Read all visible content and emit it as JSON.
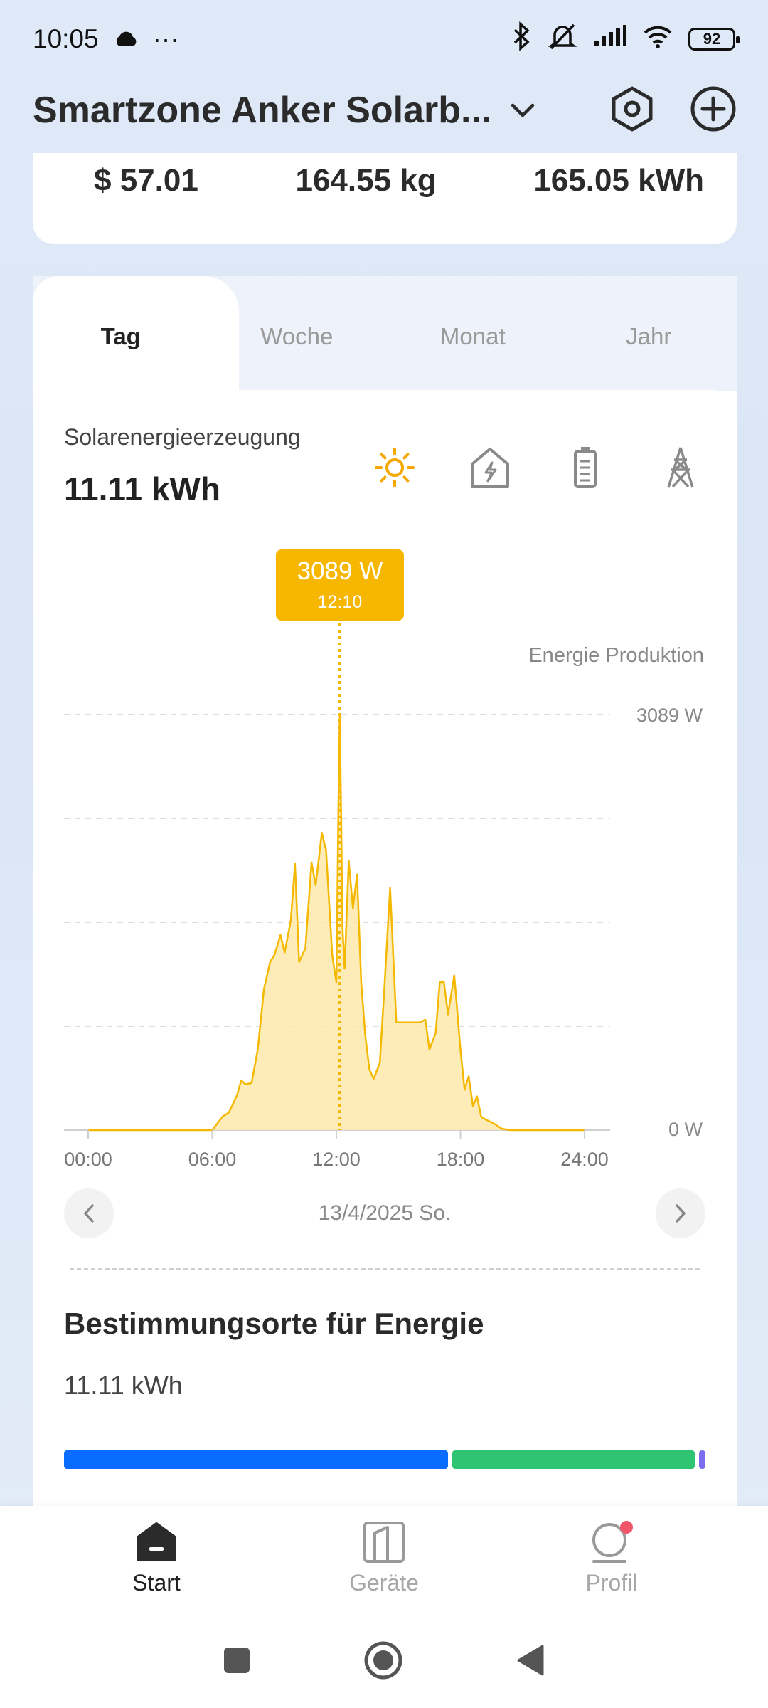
{
  "status_bar": {
    "time": "10:05",
    "more": "···",
    "battery": "92"
  },
  "header": {
    "title": "Smartzone Anker Solarb..."
  },
  "summary": {
    "savings": "$ 57.01",
    "co2": "164.55 kg",
    "energy": "165.05 kWh"
  },
  "tabs": [
    {
      "label": "Tag",
      "active": true
    },
    {
      "label": "Woche",
      "active": false
    },
    {
      "label": "Monat",
      "active": false
    },
    {
      "label": "Jahr",
      "active": false
    }
  ],
  "metric": {
    "label": "Solarenergieerzeugung",
    "value": "11.11 kWh"
  },
  "type_icons": [
    "sun-icon",
    "house-bolt-icon",
    "battery-icon",
    "pylon-icon"
  ],
  "colors": {
    "accent": "#f5b800",
    "blue": "#0a6cff",
    "green": "#2ec472",
    "purple": "#7b6cf0"
  },
  "chart_data": {
    "type": "area",
    "legend": "Energie Produktion",
    "tooltip": {
      "value": "3089 W",
      "time": "12:10"
    },
    "y_tick_labels": [
      "3089 W",
      "0 W"
    ],
    "x_tick_labels": [
      "00:00",
      "06:00",
      "12:00",
      "18:00",
      "24:00"
    ],
    "xlim": [
      0,
      24
    ],
    "ylim": [
      0,
      3089
    ],
    "unit": "W",
    "grid": true,
    "points": [
      [
        0,
        0
      ],
      [
        6.0,
        0
      ],
      [
        6.2,
        40
      ],
      [
        6.5,
        100
      ],
      [
        6.8,
        130
      ],
      [
        7.2,
        260
      ],
      [
        7.4,
        370
      ],
      [
        7.6,
        340
      ],
      [
        7.9,
        350
      ],
      [
        8.2,
        600
      ],
      [
        8.5,
        1050
      ],
      [
        8.8,
        1250
      ],
      [
        9.0,
        1300
      ],
      [
        9.3,
        1450
      ],
      [
        9.5,
        1320
      ],
      [
        9.8,
        1560
      ],
      [
        10.0,
        1980
      ],
      [
        10.2,
        1250
      ],
      [
        10.5,
        1350
      ],
      [
        10.8,
        1990
      ],
      [
        11.0,
        1820
      ],
      [
        11.3,
        2210
      ],
      [
        11.5,
        2080
      ],
      [
        11.8,
        1300
      ],
      [
        12.0,
        1100
      ],
      [
        12.1,
        2400
      ],
      [
        12.17,
        3089
      ],
      [
        12.3,
        1500
      ],
      [
        12.4,
        1200
      ],
      [
        12.6,
        2000
      ],
      [
        12.8,
        1650
      ],
      [
        13.0,
        1900
      ],
      [
        13.2,
        1100
      ],
      [
        13.4,
        700
      ],
      [
        13.6,
        450
      ],
      [
        13.8,
        380
      ],
      [
        14.1,
        500
      ],
      [
        14.3,
        1000
      ],
      [
        14.6,
        1800
      ],
      [
        14.9,
        800
      ],
      [
        15.2,
        800
      ],
      [
        15.6,
        800
      ],
      [
        16.0,
        800
      ],
      [
        16.3,
        820
      ],
      [
        16.5,
        600
      ],
      [
        16.8,
        720
      ],
      [
        17.0,
        1100
      ],
      [
        17.2,
        1100
      ],
      [
        17.4,
        860
      ],
      [
        17.7,
        1150
      ],
      [
        18.0,
        600
      ],
      [
        18.2,
        300
      ],
      [
        18.4,
        400
      ],
      [
        18.6,
        180
      ],
      [
        18.8,
        250
      ],
      [
        19.0,
        100
      ],
      [
        19.2,
        80
      ],
      [
        19.6,
        50
      ],
      [
        20.0,
        10
      ],
      [
        20.4,
        0
      ],
      [
        24,
        0
      ]
    ]
  },
  "date_nav": {
    "date": "13/4/2025 So."
  },
  "destinations": {
    "title": "Bestimmungsorte für Energie",
    "value": "11.11 kWh",
    "shares": [
      0.61,
      0.385,
      0.01
    ]
  },
  "bottom_nav": [
    {
      "label": "Start",
      "icon": "home-icon",
      "active": true
    },
    {
      "label": "Geräte",
      "icon": "devices-icon",
      "active": false
    },
    {
      "label": "Profil",
      "icon": "profile-icon",
      "active": false
    }
  ]
}
